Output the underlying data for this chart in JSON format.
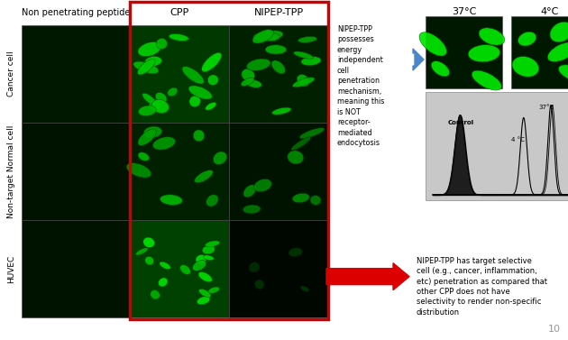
{
  "background_color": "#ffffff",
  "col_headers": [
    "Non penetrating peptide",
    "CPP",
    "NIPEP-TPP"
  ],
  "row_labels": [
    "Cancer cell",
    "Non-target Normal cell",
    "HUVEC"
  ],
  "right_col_headers": [
    "37°C",
    "4°C"
  ],
  "nipep_text": "NIPEP-TPP\npossesses\nenergy\nindependent\ncell\npenetration\nmechanism,\nmeaning this\nis NOT\nreceptor-\nmediated\nendocytosis",
  "bottom_text": "NIPEP-TPP has target selective\ncell (e.g., cancer, inflammation,\netc) penetration as compared that\nother CPP does not have\nselectivity to render non-specific\ndistribution",
  "page_number": "10",
  "red_box_color": "#cc0000",
  "red_arrow_color": "#dd0000",
  "blue_arrow_color": "#4a86c8",
  "flow_bg": "#d8d8d8",
  "cell_colors": [
    [
      "#001800",
      "#003800",
      "#002000"
    ],
    [
      "#001200",
      "#002000",
      "#001200"
    ],
    [
      "#001200",
      "#004000",
      "#000600"
    ]
  ],
  "right_img_colors": [
    "#001800",
    "#001800"
  ]
}
